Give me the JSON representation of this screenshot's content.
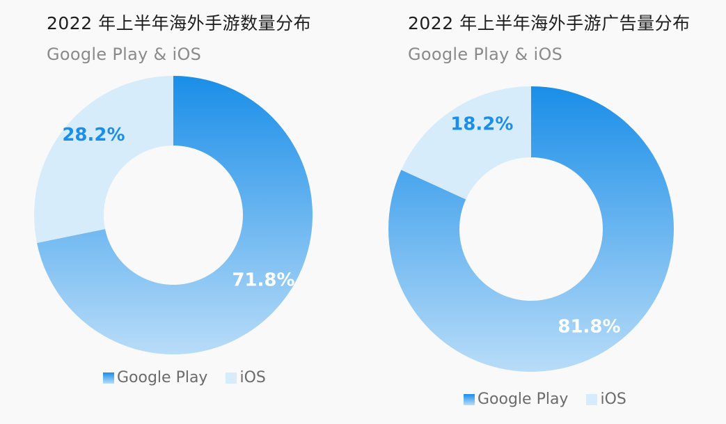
{
  "colors": {
    "google_top": "#1a8ee8",
    "google_bottom": "#b8dcf8",
    "ios": "#d6ecfb",
    "label_dark": "#1a8ee8",
    "label_light": "#ffffff"
  },
  "chart_data": [
    {
      "type": "pie",
      "variant": "donut",
      "title": "2022 年上半年海外手游数量分布",
      "subtitle": "Google Play & iOS",
      "slices": [
        {
          "name": "Google Play",
          "value": 71.8,
          "label": "71.8%"
        },
        {
          "name": "iOS",
          "value": 28.2,
          "label": "28.2%"
        }
      ],
      "legend": [
        "Google Play",
        "iOS"
      ],
      "legend_position": "bottom"
    },
    {
      "type": "pie",
      "variant": "donut",
      "title": "2022 年上半年海外手游广告量分布",
      "subtitle": "Google Play & iOS",
      "slices": [
        {
          "name": "Google Play",
          "value": 81.8,
          "label": "81.8%"
        },
        {
          "name": "iOS",
          "value": 18.2,
          "label": "18.2%"
        }
      ],
      "legend": [
        "Google Play",
        "iOS"
      ],
      "legend_position": "bottom"
    }
  ]
}
